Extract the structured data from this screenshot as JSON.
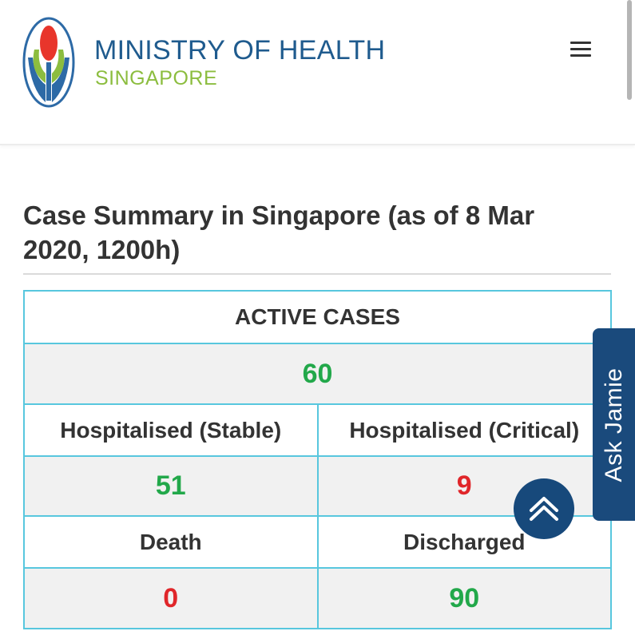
{
  "header": {
    "ministry_name": "MINISTRY OF HEALTH",
    "country": "SINGAPORE",
    "menu_icon": "hamburger-menu-icon"
  },
  "summary": {
    "title": "Case Summary in Singapore (as of 8 Mar 2020, 1200h)",
    "active_cases_label": "ACTIVE CASES",
    "active_cases_value": "60",
    "hospitalised_stable_label": "Hospitalised (Stable)",
    "hospitalised_stable_value": "51",
    "hospitalised_critical_label": "Hospitalised (Critical)",
    "hospitalised_critical_value": "9",
    "death_label": "Death",
    "death_value": "0",
    "discharged_label": "Discharged",
    "discharged_value": "90"
  },
  "widgets": {
    "ask_jamie_label": "Ask Jamie",
    "back_to_top_icon": "chevron-up-icon"
  },
  "colors": {
    "brand_blue": "#1f5b8e",
    "brand_green": "#8cbd3f",
    "value_green": "#22a84a",
    "value_red": "#e0262a",
    "table_border": "#58c7de",
    "widget_navy": "#1a4a7c"
  }
}
